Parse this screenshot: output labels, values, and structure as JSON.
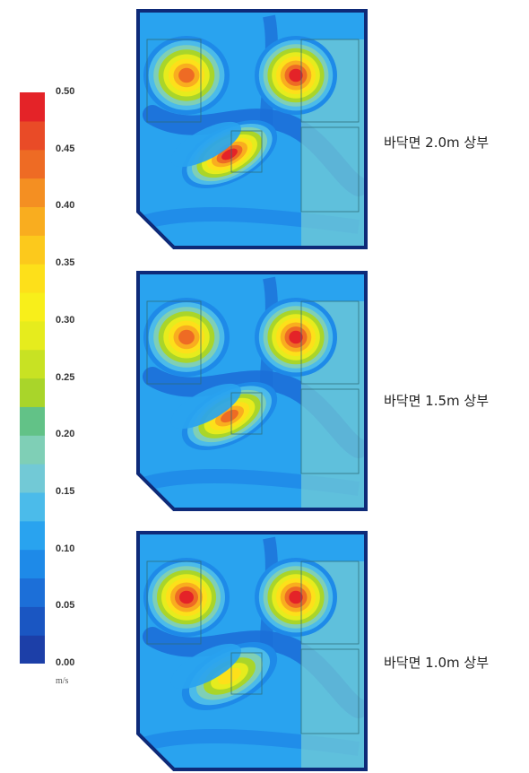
{
  "chart_data": {
    "type": "heatmap",
    "unit": "m/s",
    "colorbar": {
      "min": 0.0,
      "max": 0.5,
      "step": 0.025,
      "tick_labels": [
        "0.50",
        "0.45",
        "0.40",
        "0.35",
        "0.30",
        "0.25",
        "0.20",
        "0.15",
        "0.10",
        "0.05",
        "0.00"
      ],
      "colors": [
        "#1c3fa8",
        "#1a56c2",
        "#1c6fd8",
        "#1e8ae8",
        "#29a3ef",
        "#4bbbea",
        "#72c9d6",
        "#7fcfb6",
        "#62c287",
        "#a9d52a",
        "#c8e223",
        "#e6ec1d",
        "#f8ef1a",
        "#fde01a",
        "#fcc91c",
        "#f9ad1f",
        "#f48f22",
        "#ee6b24",
        "#e94b27",
        "#e42328"
      ]
    },
    "panels": [
      {
        "caption": "바닥면 2.0m 상부",
        "hotspots": [
          {
            "name": "upper-left",
            "peak": 0.45
          },
          {
            "name": "upper-right",
            "peak": 0.5
          },
          {
            "name": "center-crescent",
            "peak": 0.5
          }
        ]
      },
      {
        "caption": "바닥면 1.5m 상부",
        "hotspots": [
          {
            "name": "upper-left",
            "peak": 0.45
          },
          {
            "name": "upper-right",
            "peak": 0.5
          },
          {
            "name": "center-crescent",
            "peak": 0.45
          }
        ]
      },
      {
        "caption": "바닥면 1.0m 상부",
        "hotspots": [
          {
            "name": "upper-left",
            "peak": 0.5
          },
          {
            "name": "upper-right",
            "peak": 0.5
          },
          {
            "name": "center-crescent",
            "peak": 0.35
          }
        ]
      }
    ]
  }
}
